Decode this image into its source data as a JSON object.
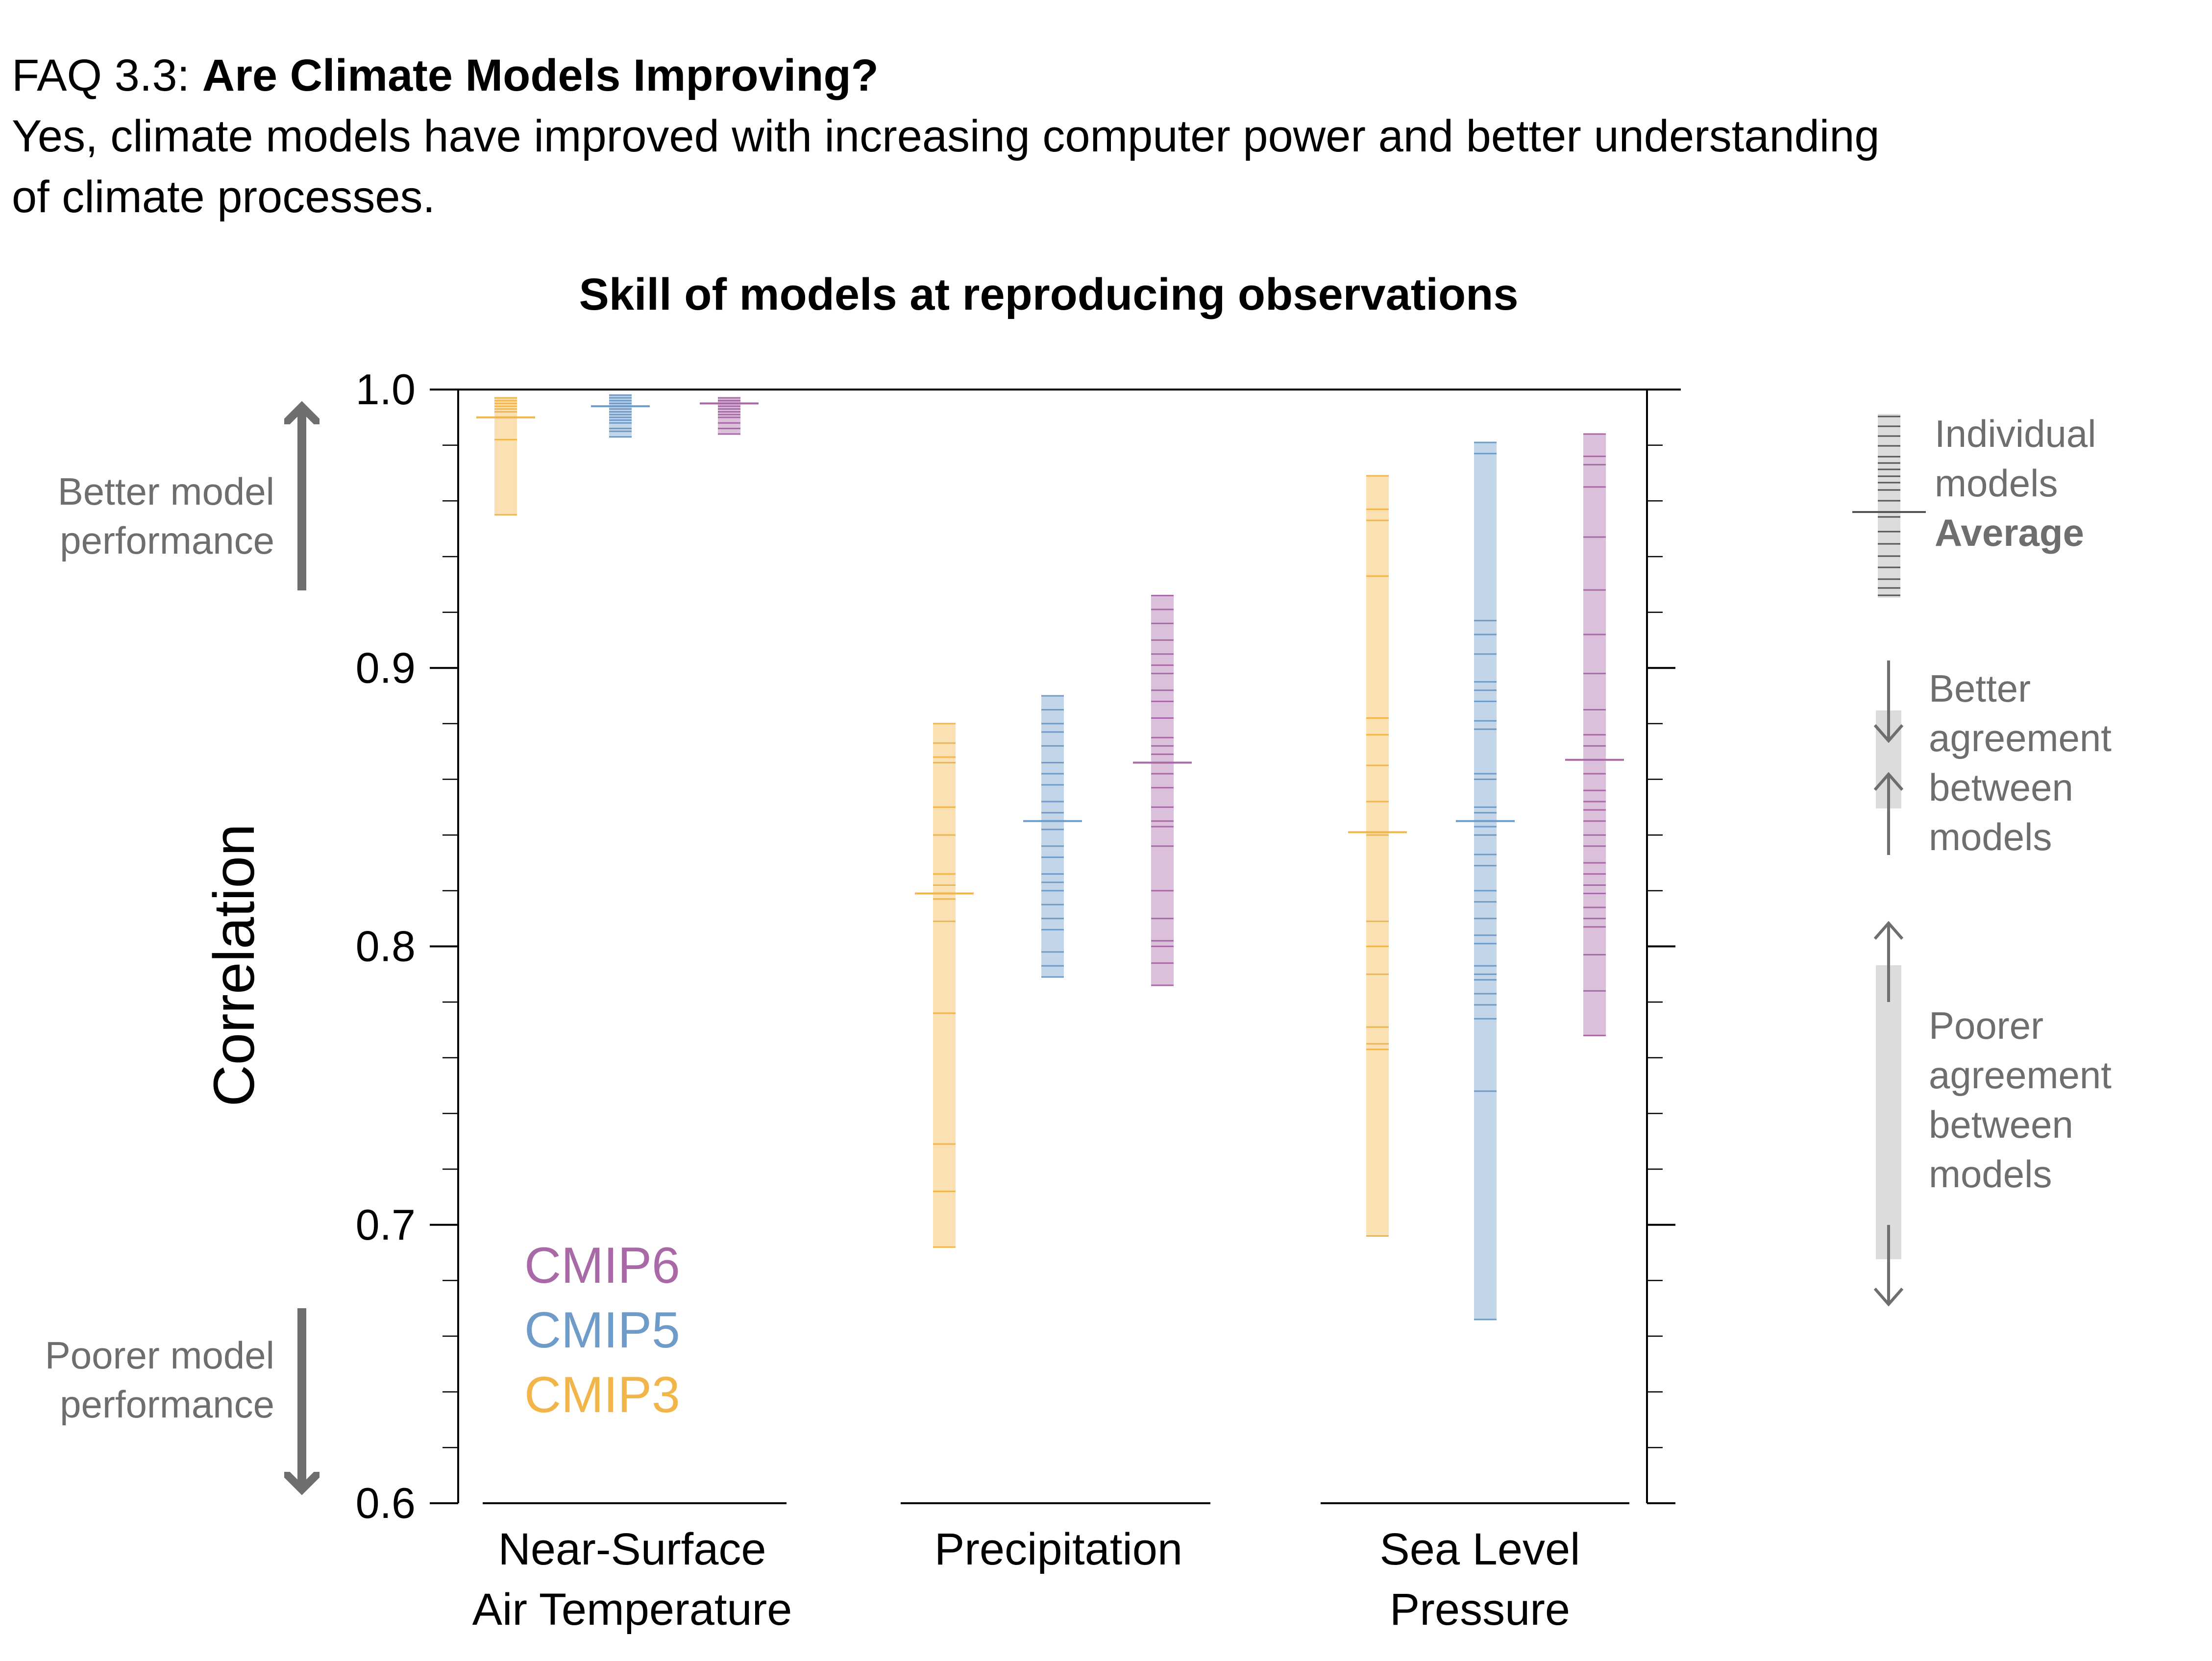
{
  "header": {
    "faq_label": "FAQ 3.3:",
    "faq_question": "Are Climate Models Improving?",
    "answer_line1": "Yes, climate models have improved with increasing computer power and better understanding",
    "answer_line2": "of climate processes."
  },
  "colors": {
    "CMIP3": "#f2b54a",
    "CMIP5": "#6f9bc9",
    "CMIP6": "#a869a6",
    "annotation_gray": "#6e6e6e"
  },
  "annotations": {
    "better_perf_line1": "Better model",
    "better_perf_line2": "performance",
    "poorer_perf_line1": "Poorer model",
    "poorer_perf_line2": "performance"
  },
  "key": {
    "individual_line1": "Individual",
    "individual_line2": "models",
    "average_label": "Average",
    "better_agree_line1": "Better",
    "better_agree_line2": "agreement",
    "better_agree_line3": "between",
    "better_agree_line4": "models",
    "poorer_agree_line1": "Poorer",
    "poorer_agree_line2": "agreement",
    "poorer_agree_line3": "between",
    "poorer_agree_line4": "models"
  },
  "chart_data": {
    "type": "strip",
    "title": "Skill of models at reproducing observations",
    "ylabel": "Correlation",
    "ylim": [
      0.6,
      1.0
    ],
    "yticks": [
      "0.6",
      "0.7",
      "0.8",
      "0.9",
      "1.0"
    ],
    "grid": false,
    "legend_position": "bottom-left",
    "legend_order": [
      "CMIP6",
      "CMIP5",
      "CMIP3"
    ],
    "categories": [
      {
        "line1": "Near-Surface",
        "line2": "Air Temperature"
      },
      {
        "line1": "Precipitation",
        "line2": ""
      },
      {
        "line1": "Sea Level",
        "line2": "Pressure"
      }
    ],
    "series": [
      {
        "name": "CMIP3",
        "category_data": [
          {
            "min": 0.955,
            "max": 0.997,
            "mean": 0.99,
            "models": [
              0.955,
              0.982,
              0.99,
              0.992,
              0.993,
              0.994,
              0.995,
              0.996,
              0.997
            ]
          },
          {
            "min": 0.692,
            "max": 0.88,
            "mean": 0.819,
            "models": [
              0.692,
              0.712,
              0.729,
              0.776,
              0.809,
              0.817,
              0.822,
              0.826,
              0.84,
              0.85,
              0.866,
              0.868,
              0.873,
              0.88
            ]
          },
          {
            "min": 0.696,
            "max": 0.969,
            "mean": 0.841,
            "models": [
              0.696,
              0.763,
              0.765,
              0.771,
              0.79,
              0.8,
              0.809,
              0.84,
              0.852,
              0.865,
              0.876,
              0.882,
              0.933,
              0.953,
              0.957,
              0.969
            ]
          }
        ]
      },
      {
        "name": "CMIP5",
        "category_data": [
          {
            "min": 0.983,
            "max": 0.998,
            "mean": 0.994,
            "models": [
              0.983,
              0.985,
              0.986,
              0.988,
              0.989,
              0.99,
              0.991,
              0.992,
              0.993,
              0.994,
              0.995,
              0.995,
              0.996,
              0.997,
              0.997,
              0.998,
              0.998
            ]
          },
          {
            "min": 0.789,
            "max": 0.89,
            "mean": 0.845,
            "models": [
              0.789,
              0.793,
              0.798,
              0.806,
              0.81,
              0.815,
              0.82,
              0.823,
              0.826,
              0.832,
              0.836,
              0.842,
              0.845,
              0.848,
              0.852,
              0.858,
              0.862,
              0.866,
              0.872,
              0.877,
              0.88,
              0.885,
              0.89
            ]
          },
          {
            "min": 0.666,
            "max": 0.981,
            "mean": 0.845,
            "models": [
              0.666,
              0.748,
              0.774,
              0.779,
              0.783,
              0.788,
              0.79,
              0.793,
              0.801,
              0.804,
              0.81,
              0.816,
              0.82,
              0.829,
              0.833,
              0.84,
              0.843,
              0.848,
              0.85,
              0.86,
              0.862,
              0.878,
              0.881,
              0.888,
              0.892,
              0.895,
              0.905,
              0.912,
              0.917,
              0.977,
              0.981
            ]
          }
        ]
      },
      {
        "name": "CMIP6",
        "category_data": [
          {
            "min": 0.984,
            "max": 0.997,
            "mean": 0.995,
            "models": [
              0.984,
              0.986,
              0.988,
              0.99,
              0.991,
              0.992,
              0.993,
              0.994,
              0.995,
              0.996,
              0.996,
              0.997
            ]
          },
          {
            "min": 0.786,
            "max": 0.926,
            "mean": 0.866,
            "models": [
              0.786,
              0.794,
              0.8,
              0.802,
              0.81,
              0.82,
              0.836,
              0.843,
              0.845,
              0.85,
              0.857,
              0.862,
              0.866,
              0.869,
              0.872,
              0.875,
              0.882,
              0.888,
              0.892,
              0.898,
              0.901,
              0.905,
              0.91,
              0.916,
              0.921,
              0.926
            ]
          },
          {
            "min": 0.768,
            "max": 0.984,
            "mean": 0.867,
            "models": [
              0.768,
              0.784,
              0.797,
              0.807,
              0.81,
              0.814,
              0.819,
              0.822,
              0.826,
              0.83,
              0.836,
              0.84,
              0.845,
              0.849,
              0.852,
              0.856,
              0.862,
              0.867,
              0.872,
              0.876,
              0.885,
              0.898,
              0.912,
              0.928,
              0.947,
              0.965,
              0.973,
              0.976,
              0.984
            ]
          }
        ]
      }
    ]
  }
}
